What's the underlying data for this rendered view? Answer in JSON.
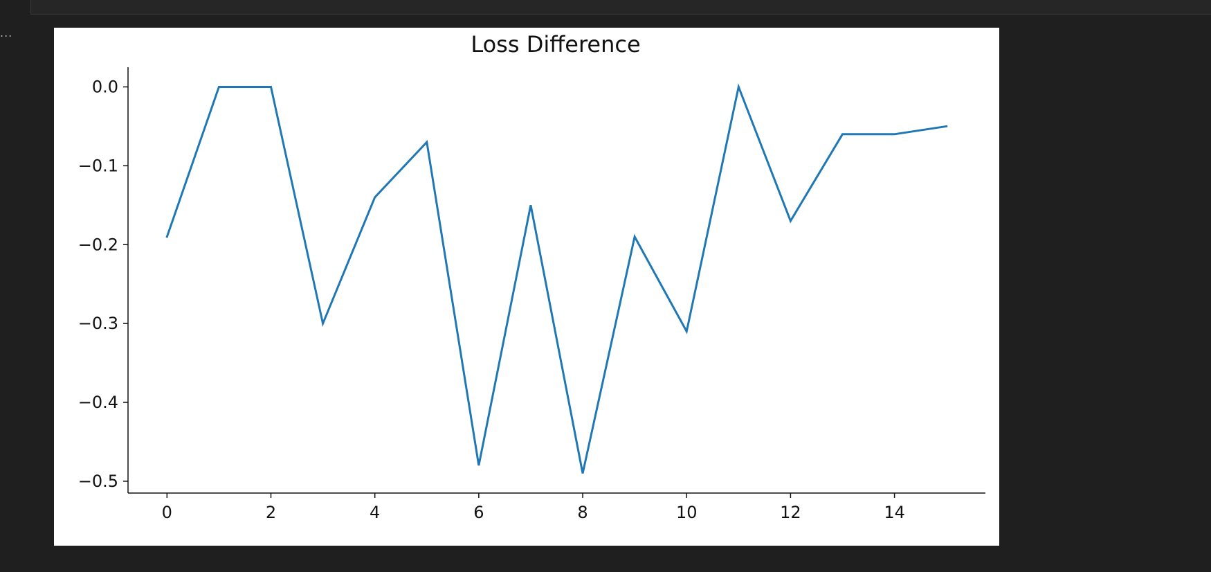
{
  "output": {
    "ellipsis": "..."
  },
  "chart_data": {
    "type": "line",
    "title": "Loss Difference",
    "xlabel": "",
    "ylabel": "",
    "x": [
      0,
      1,
      2,
      3,
      4,
      5,
      6,
      7,
      8,
      9,
      10,
      11,
      12,
      13,
      14,
      15
    ],
    "series": [
      {
        "values": [
          -0.19,
          0.0,
          0.0,
          -0.3,
          -0.14,
          -0.07,
          -0.48,
          -0.15,
          -0.49,
          -0.19,
          -0.31,
          0.0,
          -0.17,
          -0.06,
          -0.06,
          -0.05
        ],
        "color": "#1f77b4"
      }
    ],
    "xlim": [
      -0.75,
      15.75
    ],
    "ylim": [
      -0.515,
      0.025
    ],
    "xticks": [
      0,
      2,
      4,
      6,
      8,
      10,
      12,
      14
    ],
    "xtick_labels": [
      "0",
      "2",
      "4",
      "6",
      "8",
      "10",
      "12",
      "14"
    ],
    "yticks": [
      0.0,
      -0.1,
      -0.2,
      -0.3,
      -0.4,
      -0.5
    ],
    "ytick_labels": [
      "0.0",
      "−0.1",
      "−0.2",
      "−0.3",
      "−0.4",
      "−0.5"
    ],
    "grid": false,
    "spines": [
      "left",
      "bottom"
    ]
  }
}
